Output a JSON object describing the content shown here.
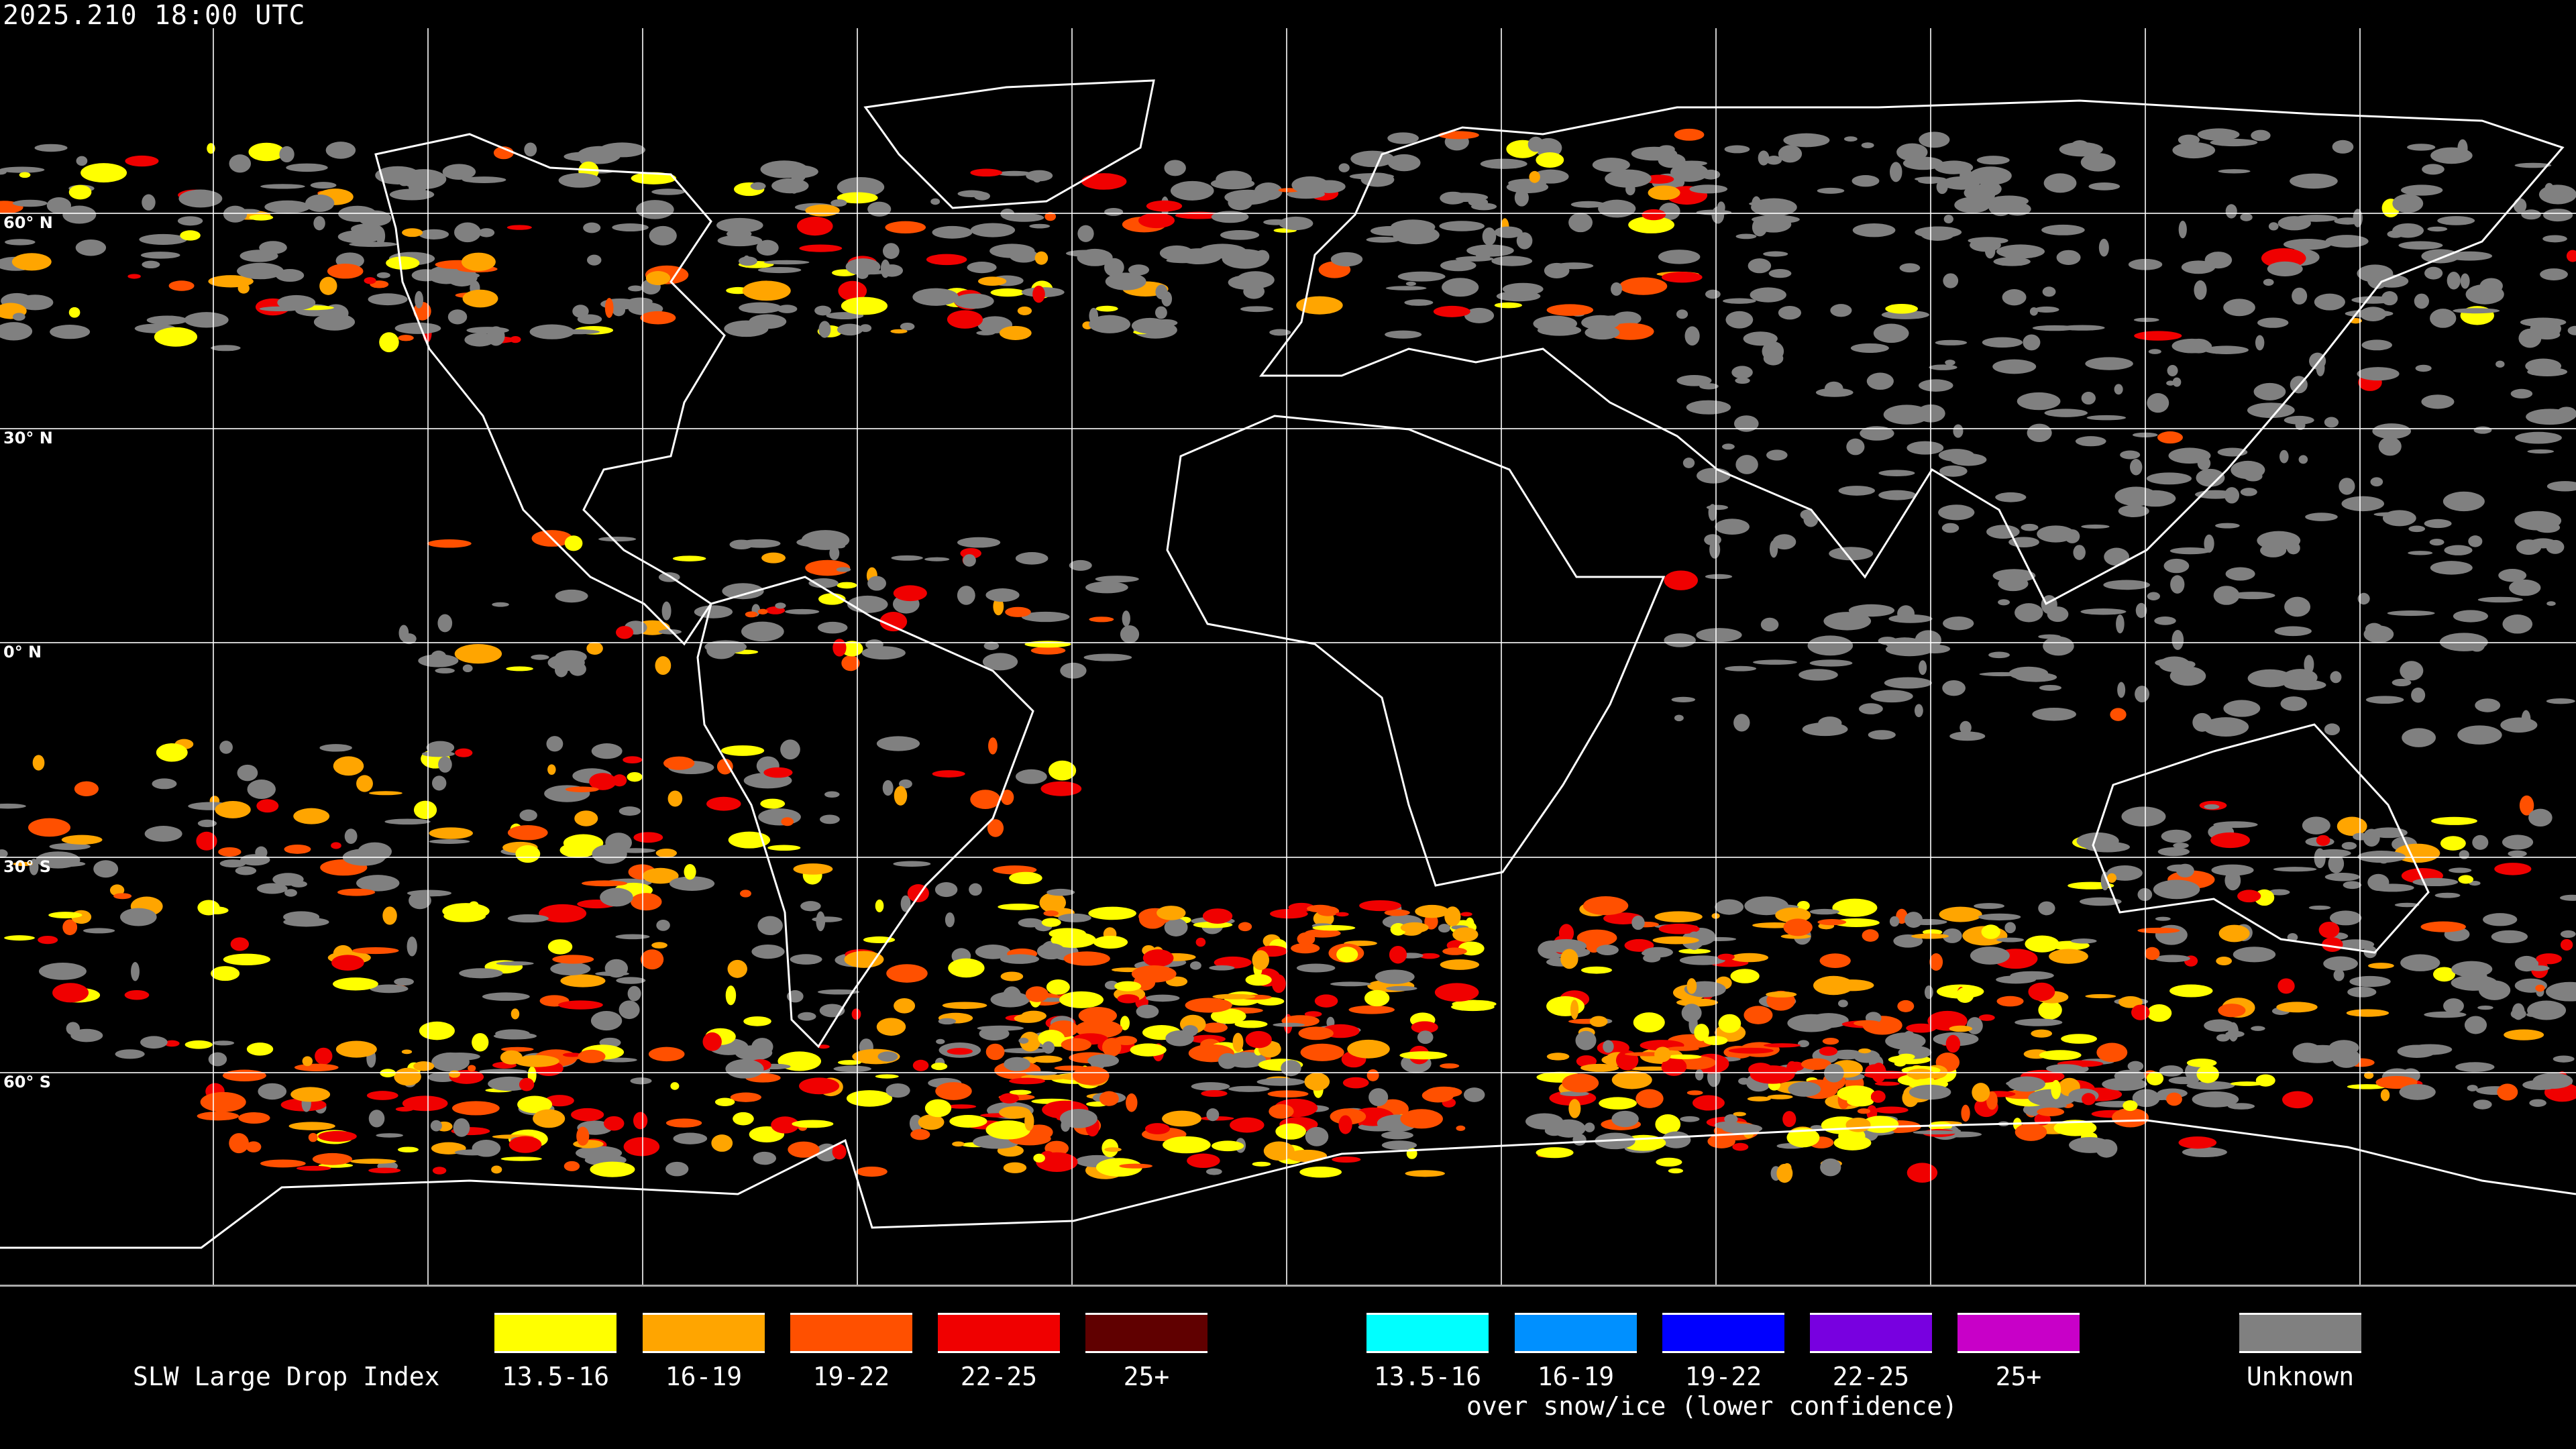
{
  "header": {
    "timestamp": "2025.210 18:00 UTC"
  },
  "map": {
    "projection": "equirectangular",
    "background": "#000000",
    "gridline_color": "#ffffff",
    "coastline_color": "#ffffff",
    "lat_labels": [
      "60° N",
      "30° N",
      "0° N",
      "30° S",
      "60° S"
    ]
  },
  "legend": {
    "title": "SLW Large Drop Index",
    "primary": [
      {
        "label": "13.5-16",
        "color": "#ffff00"
      },
      {
        "label": "16-19",
        "color": "#ffa500"
      },
      {
        "label": "19-22",
        "color": "#ff5000"
      },
      {
        "label": "22-25",
        "color": "#f00000"
      },
      {
        "label": "25+",
        "color": "#600000"
      }
    ],
    "snow_ice": [
      {
        "label": "13.5-16",
        "color": "#00ffff"
      },
      {
        "label": "16-19",
        "color": "#0090ff"
      },
      {
        "label": "19-22",
        "color": "#0000ff"
      },
      {
        "label": "22-25",
        "color": "#7800e0"
      },
      {
        "label": "25+",
        "color": "#c800c8"
      }
    ],
    "snow_ice_caption": "over snow/ice (lower confidence)",
    "unknown": {
      "label": "Unknown",
      "color": "#808080"
    }
  }
}
